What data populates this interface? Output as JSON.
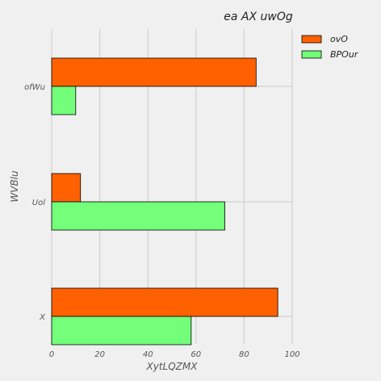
{
  "chart_data": {
    "type": "bar",
    "orientation": "horizontal",
    "title": "ea AX uwOg",
    "xlabel": "XytLQZMX",
    "ylabel": "WVBlu",
    "xlim": [
      0,
      100
    ],
    "xticks": [
      0,
      20,
      40,
      60,
      80,
      100
    ],
    "categories": [
      "X",
      "Uol",
      "ofWu"
    ],
    "series": [
      {
        "name": "ovO",
        "color": "#ff6100",
        "values": [
          94,
          12,
          85
        ]
      },
      {
        "name": "BPOur",
        "color": "#73ff7a",
        "values": [
          58,
          72,
          10
        ]
      }
    ],
    "grid": true,
    "legend": "top-right"
  }
}
